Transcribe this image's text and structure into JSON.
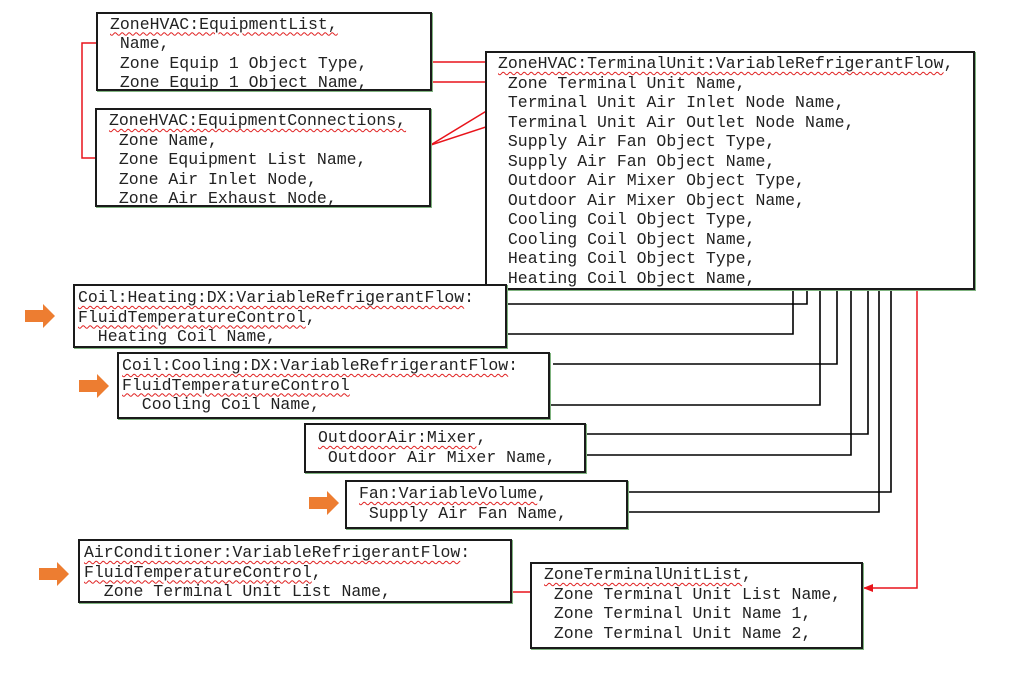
{
  "objects": {
    "equipment_list": {
      "title": "ZoneHVAC:EquipmentList,",
      "fields": [
        " Name,",
        " Zone Equip 1 Object Type,",
        " Zone Equip 1 Object Name,"
      ]
    },
    "equipment_connections": {
      "title": "ZoneHVAC:EquipmentConnections,",
      "fields": [
        " Zone Name,",
        " Zone Equipment List Name,",
        " Zone Air Inlet Node,",
        " Zone Air Exhaust Node,"
      ]
    },
    "terminal_unit": {
      "title": "ZoneHVAC:TerminalUnit:VariableRefrigerantFlow",
      "title_suffix": ",",
      "fields": [
        " Zone Terminal Unit Name,",
        " Terminal Unit Air Inlet Node Name,",
        " Terminal Unit Air Outlet Node Name,",
        " Supply Air Fan Object Type,",
        " Supply Air Fan Object Name,",
        " Outdoor Air Mixer Object Type,",
        " Outdoor Air Mixer Object Name,",
        " Cooling Coil Object Type,",
        " Cooling Coil Object Name,",
        " Heating Coil Object Type,",
        " Heating Coil Object Name,"
      ]
    },
    "heating_coil": {
      "title1": "Coil:Heating:DX:VariableRefrigerantFlow",
      "title1_suffix": ":",
      "title2": "FluidTemperatureControl",
      "title2_suffix": ",",
      "fields": [
        "  Heating Coil Name,"
      ]
    },
    "cooling_coil": {
      "title1": "Coil:Cooling:DX:VariableRefrigerantFlow",
      "title1_suffix": ":",
      "title2": "FluidTemperatureControl",
      "title2_suffix": "",
      "fields": [
        "  Cooling Coil Name,"
      ]
    },
    "oa_mixer": {
      "title": "OutdoorAir:Mixer",
      "title_suffix": ",",
      "fields": [
        " Outdoor Air Mixer Name,"
      ]
    },
    "fan": {
      "title": "Fan:VariableVolume",
      "title_suffix": ",",
      "fields": [
        " Supply Air Fan Name,"
      ]
    },
    "air_conditioner": {
      "title1": "AirConditioner:VariableRefrigerantFlow",
      "title1_suffix": ":",
      "title2": "FluidTemperatureControl",
      "title2_suffix": ",",
      "fields": [
        "  Zone Terminal Unit List Name,"
      ]
    },
    "terminal_unit_list": {
      "title": "ZoneTerminalUnitList",
      "title_suffix": ",",
      "fields": [
        " Zone Terminal Unit List Name,",
        " Zone Terminal Unit Name 1,",
        " Zone Terminal Unit Name 2,"
      ]
    }
  },
  "colors": {
    "reference_link": "#e8141b",
    "object_link": "#000000",
    "highlight_arrow": "#ed7d31",
    "box_border": "#1a1a1a"
  }
}
